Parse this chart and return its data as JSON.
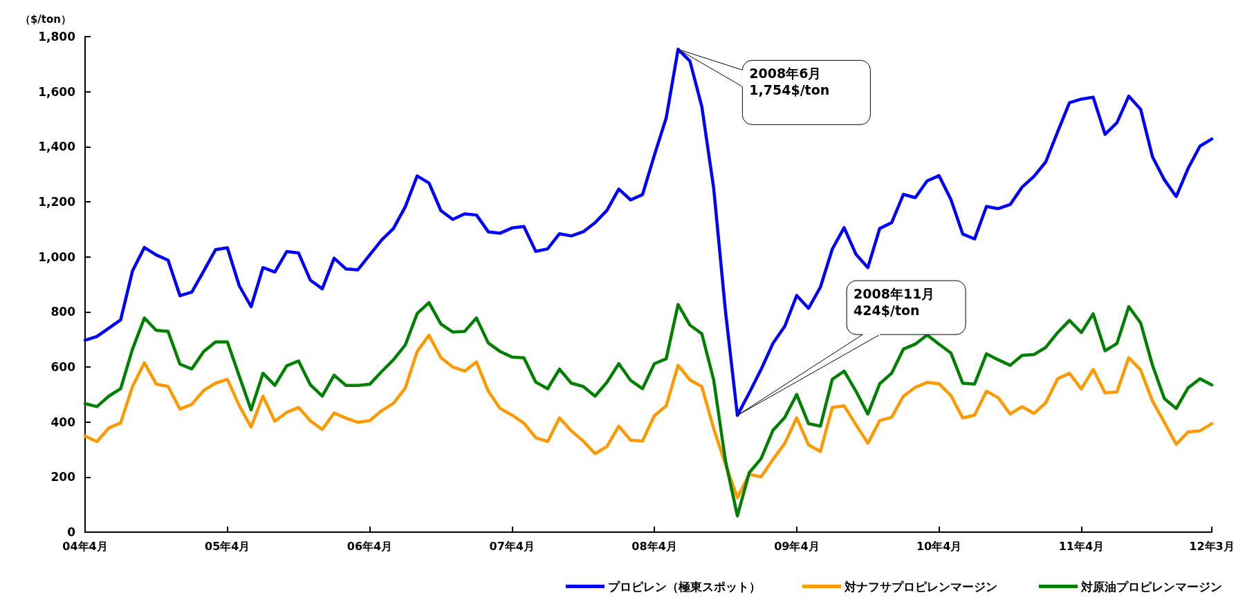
{
  "chart_data": {
    "type": "line",
    "ylabel": "（$/ton）",
    "categories": [
      "04年4月",
      null,
      null,
      null,
      null,
      null,
      null,
      null,
      null,
      null,
      null,
      null,
      "05年4月",
      null,
      null,
      null,
      null,
      null,
      null,
      null,
      null,
      null,
      null,
      null,
      "06年4月",
      null,
      null,
      null,
      null,
      null,
      null,
      null,
      null,
      null,
      null,
      null,
      "07年4月",
      null,
      null,
      null,
      null,
      null,
      null,
      null,
      null,
      null,
      null,
      null,
      "08年4月",
      null,
      null,
      null,
      null,
      null,
      null,
      null,
      null,
      null,
      null,
      null,
      "09年4月",
      null,
      null,
      null,
      null,
      null,
      null,
      null,
      null,
      null,
      null,
      null,
      "10年4月",
      null,
      null,
      null,
      null,
      null,
      null,
      null,
      null,
      null,
      null,
      null,
      "11年4月",
      null,
      null,
      null,
      null,
      null,
      null,
      null,
      null,
      null,
      null,
      "12年3月"
    ],
    "series": [
      {
        "name": "プロピレン（極東スポット）",
        "color": "#0000ff",
        "values": [
          697,
          711,
          741,
          771,
          949,
          1034,
          1007,
          988,
          859,
          872,
          948,
          1026,
          1033,
          895,
          819,
          961,
          945,
          1019,
          1014,
          915,
          884,
          995,
          956,
          953,
          1007,
          1061,
          1103,
          1182,
          1294,
          1268,
          1168,
          1136,
          1156,
          1152,
          1091,
          1086,
          1105,
          1110,
          1020,
          1029,
          1084,
          1076,
          1091,
          1124,
          1169,
          1246,
          1207,
          1226,
          1369,
          1505,
          1754,
          1711,
          1546,
          1250,
          801,
          424,
          506,
          591,
          686,
          748,
          860,
          813,
          890,
          1028,
          1106,
          1009,
          961,
          1103,
          1124,
          1227,
          1215,
          1276,
          1295,
          1209,
          1083,
          1065,
          1183,
          1175,
          1190,
          1253,
          1292,
          1345,
          1454,
          1560,
          1573,
          1580,
          1445,
          1487,
          1584,
          1536,
          1363,
          1280,
          1219,
          1321,
          1402,
          1428
        ]
      },
      {
        "name": "対ナフサプロピレンマージン",
        "color": "#ff9900",
        "values": [
          349,
          329,
          378,
          397,
          529,
          615,
          538,
          529,
          447,
          464,
          515,
          541,
          555,
          459,
          382,
          494,
          403,
          435,
          453,
          404,
          373,
          433,
          414,
          399,
          405,
          441,
          468,
          524,
          656,
          715,
          634,
          600,
          585,
          618,
          512,
          449,
          425,
          396,
          343,
          329,
          415,
          368,
          331,
          285,
          311,
          385,
          334,
          331,
          423,
          459,
          606,
          553,
          529,
          376,
          246,
          125,
          210,
          201,
          264,
          323,
          415,
          317,
          293,
          453,
          459,
          390,
          323,
          405,
          417,
          494,
          526,
          544,
          539,
          496,
          415,
          425,
          512,
          488,
          429,
          456,
          431,
          470,
          557,
          577,
          520,
          591,
          506,
          509,
          634,
          589,
          476,
          399,
          319,
          364,
          368,
          394
        ]
      },
      {
        "name": "対原油プロピレンマージン",
        "color": "#008000",
        "values": [
          467,
          456,
          494,
          521,
          665,
          778,
          733,
          729,
          610,
          593,
          656,
          691,
          691,
          567,
          444,
          577,
          533,
          604,
          622,
          535,
          494,
          570,
          533,
          533,
          537,
          583,
          626,
          680,
          794,
          834,
          756,
          727,
          729,
          778,
          687,
          656,
          636,
          633,
          545,
          521,
          592,
          541,
          529,
          494,
          544,
          612,
          551,
          521,
          612,
          630,
          827,
          752,
          721,
          553,
          258,
          59,
          216,
          267,
          370,
          417,
          500,
          394,
          385,
          555,
          585,
          512,
          429,
          539,
          577,
          665,
          683,
          716,
          683,
          651,
          541,
          538,
          648,
          626,
          606,
          642,
          645,
          671,
          725,
          769,
          725,
          793,
          659,
          685,
          819,
          760,
          606,
          485,
          449,
          524,
          557,
          535
        ]
      }
    ],
    "ylim": [
      0,
      1800
    ],
    "yticks": [
      0,
      200,
      400,
      600,
      800,
      {
        "value": 1000,
        "label": "1,000"
      },
      {
        "value": 1200,
        "label": "1,200"
      },
      {
        "value": 1400,
        "label": "1,400"
      },
      {
        "value": 1600,
        "label": "1,600"
      },
      {
        "value": 1800,
        "label": "1,800"
      }
    ],
    "annotations": [
      "2008年6月\n1,754$/ton",
      "2008年11月\n424$/ton"
    ],
    "grid": false,
    "legend": "bottom right",
    "marker": "none",
    "line_style": "solid"
  }
}
